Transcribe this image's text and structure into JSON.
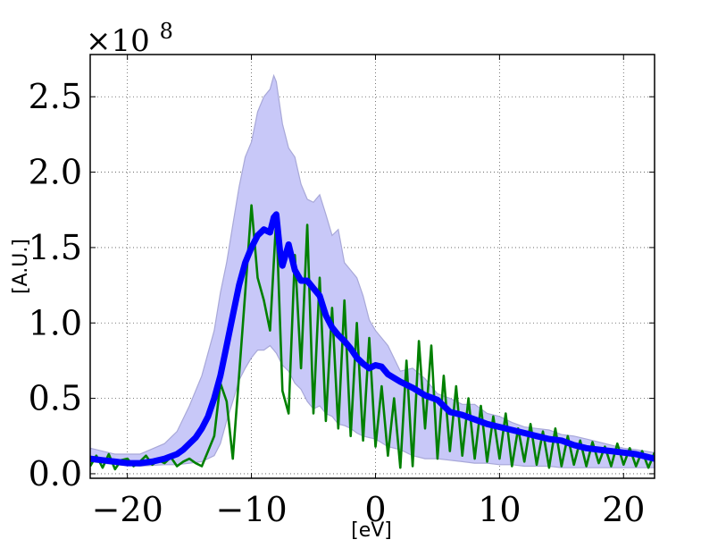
{
  "chart_data": {
    "type": "line",
    "xlabel": "[eV]",
    "ylabel": "[A.U.]",
    "y_scale_multiplier": "×10",
    "y_scale_exponent": "8",
    "xlim": [
      -23,
      22.5
    ],
    "ylim": [
      -0.03,
      2.78
    ],
    "grid": true,
    "x_ticks": [
      -20,
      -10,
      0,
      10,
      20
    ],
    "x_tick_labels": [
      "−20",
      "−10",
      "0",
      "10",
      "20"
    ],
    "y_ticks": [
      0.0,
      0.5,
      1.0,
      1.5,
      2.0,
      2.5
    ],
    "y_tick_labels": [
      "0.0",
      "0.5",
      "1.0",
      "1.5",
      "2.0",
      "2.5"
    ],
    "colors": {
      "band_fill": "#c8c8f8",
      "band_edge": "#a8a8d8",
      "mean_line": "#0000ff",
      "sample_line": "#008000",
      "grid": "#555555"
    },
    "band": {
      "x": [
        -23,
        -21,
        -19,
        -17,
        -16,
        -15,
        -14,
        -13,
        -12.5,
        -12,
        -11.5,
        -11,
        -10.5,
        -10,
        -9.5,
        -9,
        -8.5,
        -8.2,
        -8,
        -7.5,
        -7,
        -6.5,
        -6,
        -5.5,
        -5,
        -4.5,
        -4,
        -3.5,
        -3,
        -2.5,
        -2,
        -1.5,
        -1,
        -0.5,
        0,
        1,
        2,
        3,
        4,
        5,
        6,
        7,
        8,
        9,
        10,
        11,
        12,
        13,
        14,
        15,
        16,
        17,
        18,
        19,
        20,
        21,
        22.5
      ],
      "upper": [
        0.17,
        0.13,
        0.13,
        0.2,
        0.28,
        0.45,
        0.65,
        0.95,
        1.2,
        1.4,
        1.65,
        1.9,
        2.1,
        2.2,
        2.4,
        2.5,
        2.55,
        2.64,
        2.6,
        2.32,
        2.16,
        2.1,
        1.92,
        1.82,
        1.8,
        1.85,
        1.72,
        1.58,
        1.62,
        1.4,
        1.35,
        1.3,
        1.18,
        1.02,
        0.95,
        0.85,
        0.68,
        0.7,
        0.63,
        0.53,
        0.5,
        0.46,
        0.46,
        0.4,
        0.38,
        0.34,
        0.31,
        0.3,
        0.29,
        0.26,
        0.25,
        0.23,
        0.21,
        0.19,
        0.17,
        0.16,
        0.14
      ],
      "lower": [
        0.08,
        0.06,
        0.05,
        0.06,
        0.06,
        0.07,
        0.08,
        0.12,
        0.2,
        0.35,
        0.48,
        0.62,
        0.7,
        0.77,
        0.82,
        0.82,
        0.85,
        0.82,
        0.8,
        0.72,
        0.68,
        0.6,
        0.56,
        0.48,
        0.43,
        0.45,
        0.4,
        0.38,
        0.33,
        0.32,
        0.3,
        0.27,
        0.25,
        0.24,
        0.23,
        0.18,
        0.16,
        0.12,
        0.1,
        0.1,
        0.09,
        0.08,
        0.07,
        0.07,
        0.06,
        0.06,
        0.05,
        0.05,
        0.05,
        0.04,
        0.04,
        0.04,
        0.04,
        0.04,
        0.04,
        0.04,
        0.04
      ]
    },
    "series": [
      {
        "x": [
          -23,
          -22,
          -21,
          -20,
          -19,
          -18,
          -17,
          -16,
          -15.5,
          -15,
          -14.5,
          -14,
          -13.5,
          -13,
          -12.5,
          -12,
          -11.5,
          -11,
          -10.5,
          -10,
          -9.5,
          -9,
          -8.5,
          -8.2,
          -8,
          -7.7,
          -7.5,
          -7,
          -6.5,
          -6,
          -5.5,
          -5,
          -4.5,
          -4,
          -3.5,
          -3,
          -2.5,
          -2,
          -1.5,
          -1,
          -0.5,
          0,
          0.5,
          1,
          2,
          3,
          4,
          5,
          6,
          7,
          8,
          9,
          10,
          11,
          12,
          13,
          14,
          15,
          16,
          17,
          18,
          19,
          20,
          21,
          22.5
        ],
        "y": [
          0.1,
          0.09,
          0.08,
          0.07,
          0.07,
          0.08,
          0.1,
          0.13,
          0.16,
          0.2,
          0.24,
          0.3,
          0.38,
          0.5,
          0.65,
          0.85,
          1.05,
          1.25,
          1.4,
          1.5,
          1.58,
          1.62,
          1.6,
          1.7,
          1.72,
          1.48,
          1.38,
          1.52,
          1.35,
          1.28,
          1.28,
          1.23,
          1.18,
          1.05,
          0.97,
          0.92,
          0.88,
          0.83,
          0.77,
          0.73,
          0.7,
          0.72,
          0.71,
          0.66,
          0.61,
          0.57,
          0.52,
          0.49,
          0.41,
          0.39,
          0.36,
          0.33,
          0.31,
          0.29,
          0.27,
          0.25,
          0.23,
          0.22,
          0.19,
          0.17,
          0.16,
          0.15,
          0.14,
          0.13,
          0.1
        ]
      },
      {
        "x": [
          -23,
          -22.5,
          -22,
          -21.5,
          -21,
          -20.5,
          -20,
          -19.5,
          -19,
          -18.5,
          -18,
          -17.5,
          -17,
          -16.5,
          -16,
          -15.5,
          -15,
          -14.5,
          -14,
          -13.5,
          -13,
          -12.5,
          -12,
          -11.5,
          -11,
          -10.5,
          -10,
          -9.5,
          -9,
          -8.5,
          -8,
          -7.5,
          -7,
          -6.5,
          -6,
          -5.5,
          -5,
          -4.5,
          -4,
          -3.5,
          -3,
          -2.5,
          -2,
          -1.5,
          -1,
          -0.5,
          0,
          0.5,
          1,
          1.5,
          2,
          2.5,
          3,
          3.5,
          4,
          4.5,
          5,
          5.5,
          6,
          6.5,
          7,
          7.5,
          8,
          8.5,
          9,
          9.5,
          10,
          10.5,
          11,
          11.5,
          12,
          12.5,
          13,
          13.5,
          14,
          14.5,
          15,
          15.5,
          16,
          16.5,
          17,
          17.5,
          18,
          18.5,
          19,
          19.5,
          20,
          20.5,
          21,
          21.5,
          22,
          22.5
        ],
        "y": [
          0.05,
          0.12,
          0.04,
          0.13,
          0.03,
          0.09,
          0.1,
          0.05,
          0.08,
          0.12,
          0.06,
          0.09,
          0.07,
          0.11,
          0.05,
          0.08,
          0.1,
          0.07,
          0.05,
          0.15,
          0.25,
          0.6,
          0.48,
          0.1,
          0.65,
          1.2,
          1.78,
          1.3,
          1.15,
          0.95,
          1.7,
          0.55,
          0.4,
          1.45,
          0.7,
          1.65,
          0.4,
          1.3,
          0.35,
          1.1,
          0.3,
          1.15,
          0.25,
          1.0,
          0.22,
          0.9,
          0.18,
          0.58,
          0.12,
          0.5,
          0.04,
          0.75,
          0.05,
          0.88,
          0.3,
          0.85,
          0.1,
          0.65,
          0.15,
          0.58,
          0.12,
          0.5,
          0.1,
          0.45,
          0.08,
          0.38,
          0.1,
          0.4,
          0.05,
          0.3,
          0.08,
          0.33,
          0.06,
          0.28,
          0.04,
          0.3,
          0.05,
          0.25,
          0.06,
          0.22,
          0.05,
          0.21,
          0.07,
          0.18,
          0.05,
          0.2,
          0.06,
          0.17,
          0.05,
          0.15,
          0.04,
          0.14
        ]
      }
    ]
  }
}
